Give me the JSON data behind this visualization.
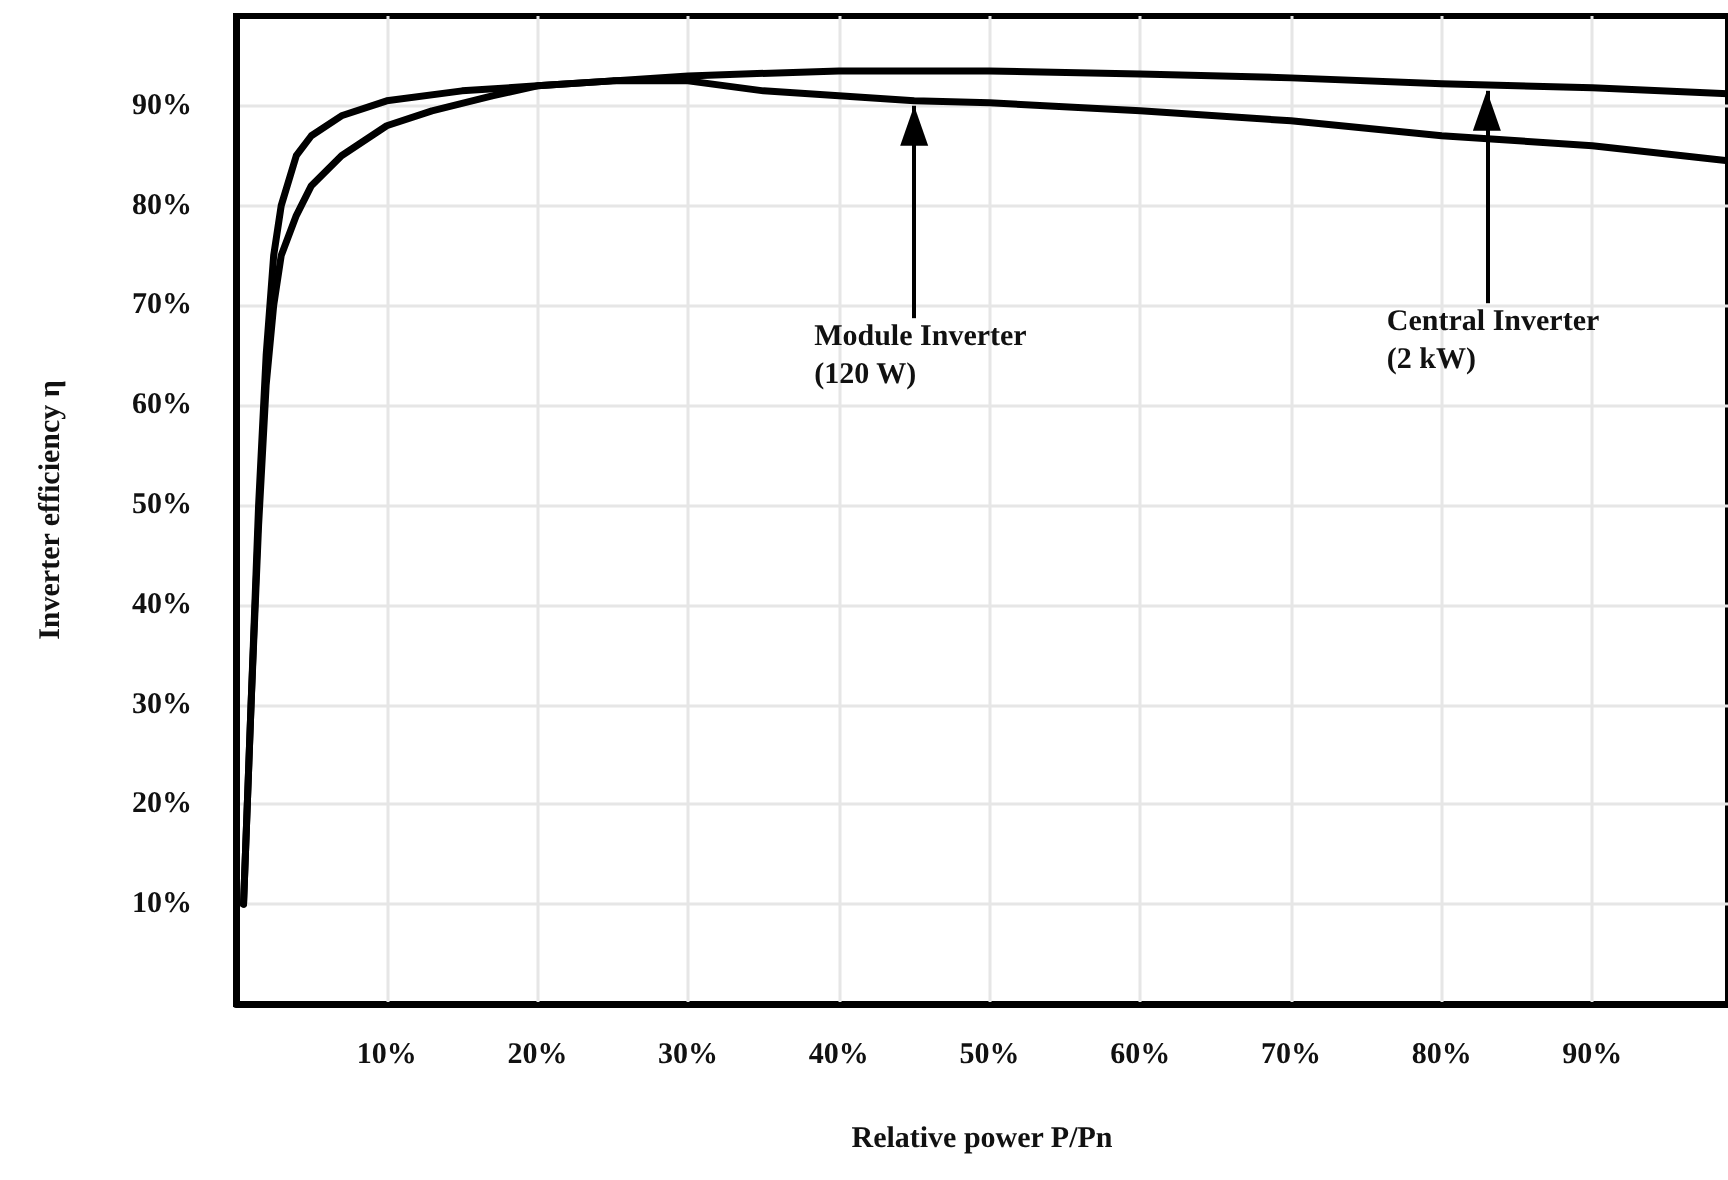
{
  "chart_data": {
    "type": "line",
    "xlabel": "Relative power P/Pn",
    "ylabel": "Inverter efficiency η",
    "xlim": [
      0,
      99
    ],
    "ylim": [
      0,
      99
    ],
    "xticks": [
      {
        "value": 10,
        "label": "10%"
      },
      {
        "value": 20,
        "label": "20%"
      },
      {
        "value": 30,
        "label": "30%"
      },
      {
        "value": 40,
        "label": "40%"
      },
      {
        "value": 50,
        "label": "50%"
      },
      {
        "value": 60,
        "label": "60%"
      },
      {
        "value": 70,
        "label": "70%"
      },
      {
        "value": 80,
        "label": "80%"
      },
      {
        "value": 90,
        "label": "90%"
      }
    ],
    "yticks": [
      {
        "value": 10,
        "label": "10%"
      },
      {
        "value": 20,
        "label": "20%"
      },
      {
        "value": 30,
        "label": "30%"
      },
      {
        "value": 40,
        "label": "40%"
      },
      {
        "value": 50,
        "label": "50%"
      },
      {
        "value": 60,
        "label": "60%"
      },
      {
        "value": 70,
        "label": "70%"
      },
      {
        "value": 80,
        "label": "80%"
      },
      {
        "value": 90,
        "label": "90%"
      }
    ],
    "grid": true,
    "marker": "none",
    "line_style": "solid",
    "series": [
      {
        "color": "#000000",
        "x": [
          0.5,
          1,
          1.5,
          2,
          2.5,
          3,
          4,
          5,
          7,
          10,
          15,
          20,
          25,
          30,
          35,
          40,
          45,
          50,
          60,
          70,
          80,
          90,
          99
        ],
        "values": [
          10,
          30,
          50,
          65,
          75,
          80,
          85,
          87,
          89,
          90.5,
          91.5,
          92,
          92.5,
          92.5,
          91.5,
          91,
          90.5,
          90.3,
          89.5,
          88.5,
          87,
          86,
          84.5
        ]
      },
      {
        "color": "#000000",
        "x": [
          0.5,
          1,
          1.5,
          2,
          2.5,
          3,
          4,
          5,
          7,
          10,
          13,
          17,
          20,
          25,
          30,
          40,
          50,
          60,
          70,
          80,
          90,
          99
        ],
        "values": [
          10,
          30,
          48,
          62,
          70,
          75,
          79,
          82,
          85,
          88,
          89.5,
          91,
          92,
          92.5,
          93,
          93.5,
          93.5,
          93.2,
          92.8,
          92.2,
          91.8,
          91.2
        ]
      }
    ],
    "annotations": [
      {
        "text": "Module Inverter (120 W)",
        "x": 45,
        "y": 90.5
      },
      {
        "text": "Central Inverter (2 kW)",
        "x": 83,
        "y": 92
      }
    ]
  }
}
